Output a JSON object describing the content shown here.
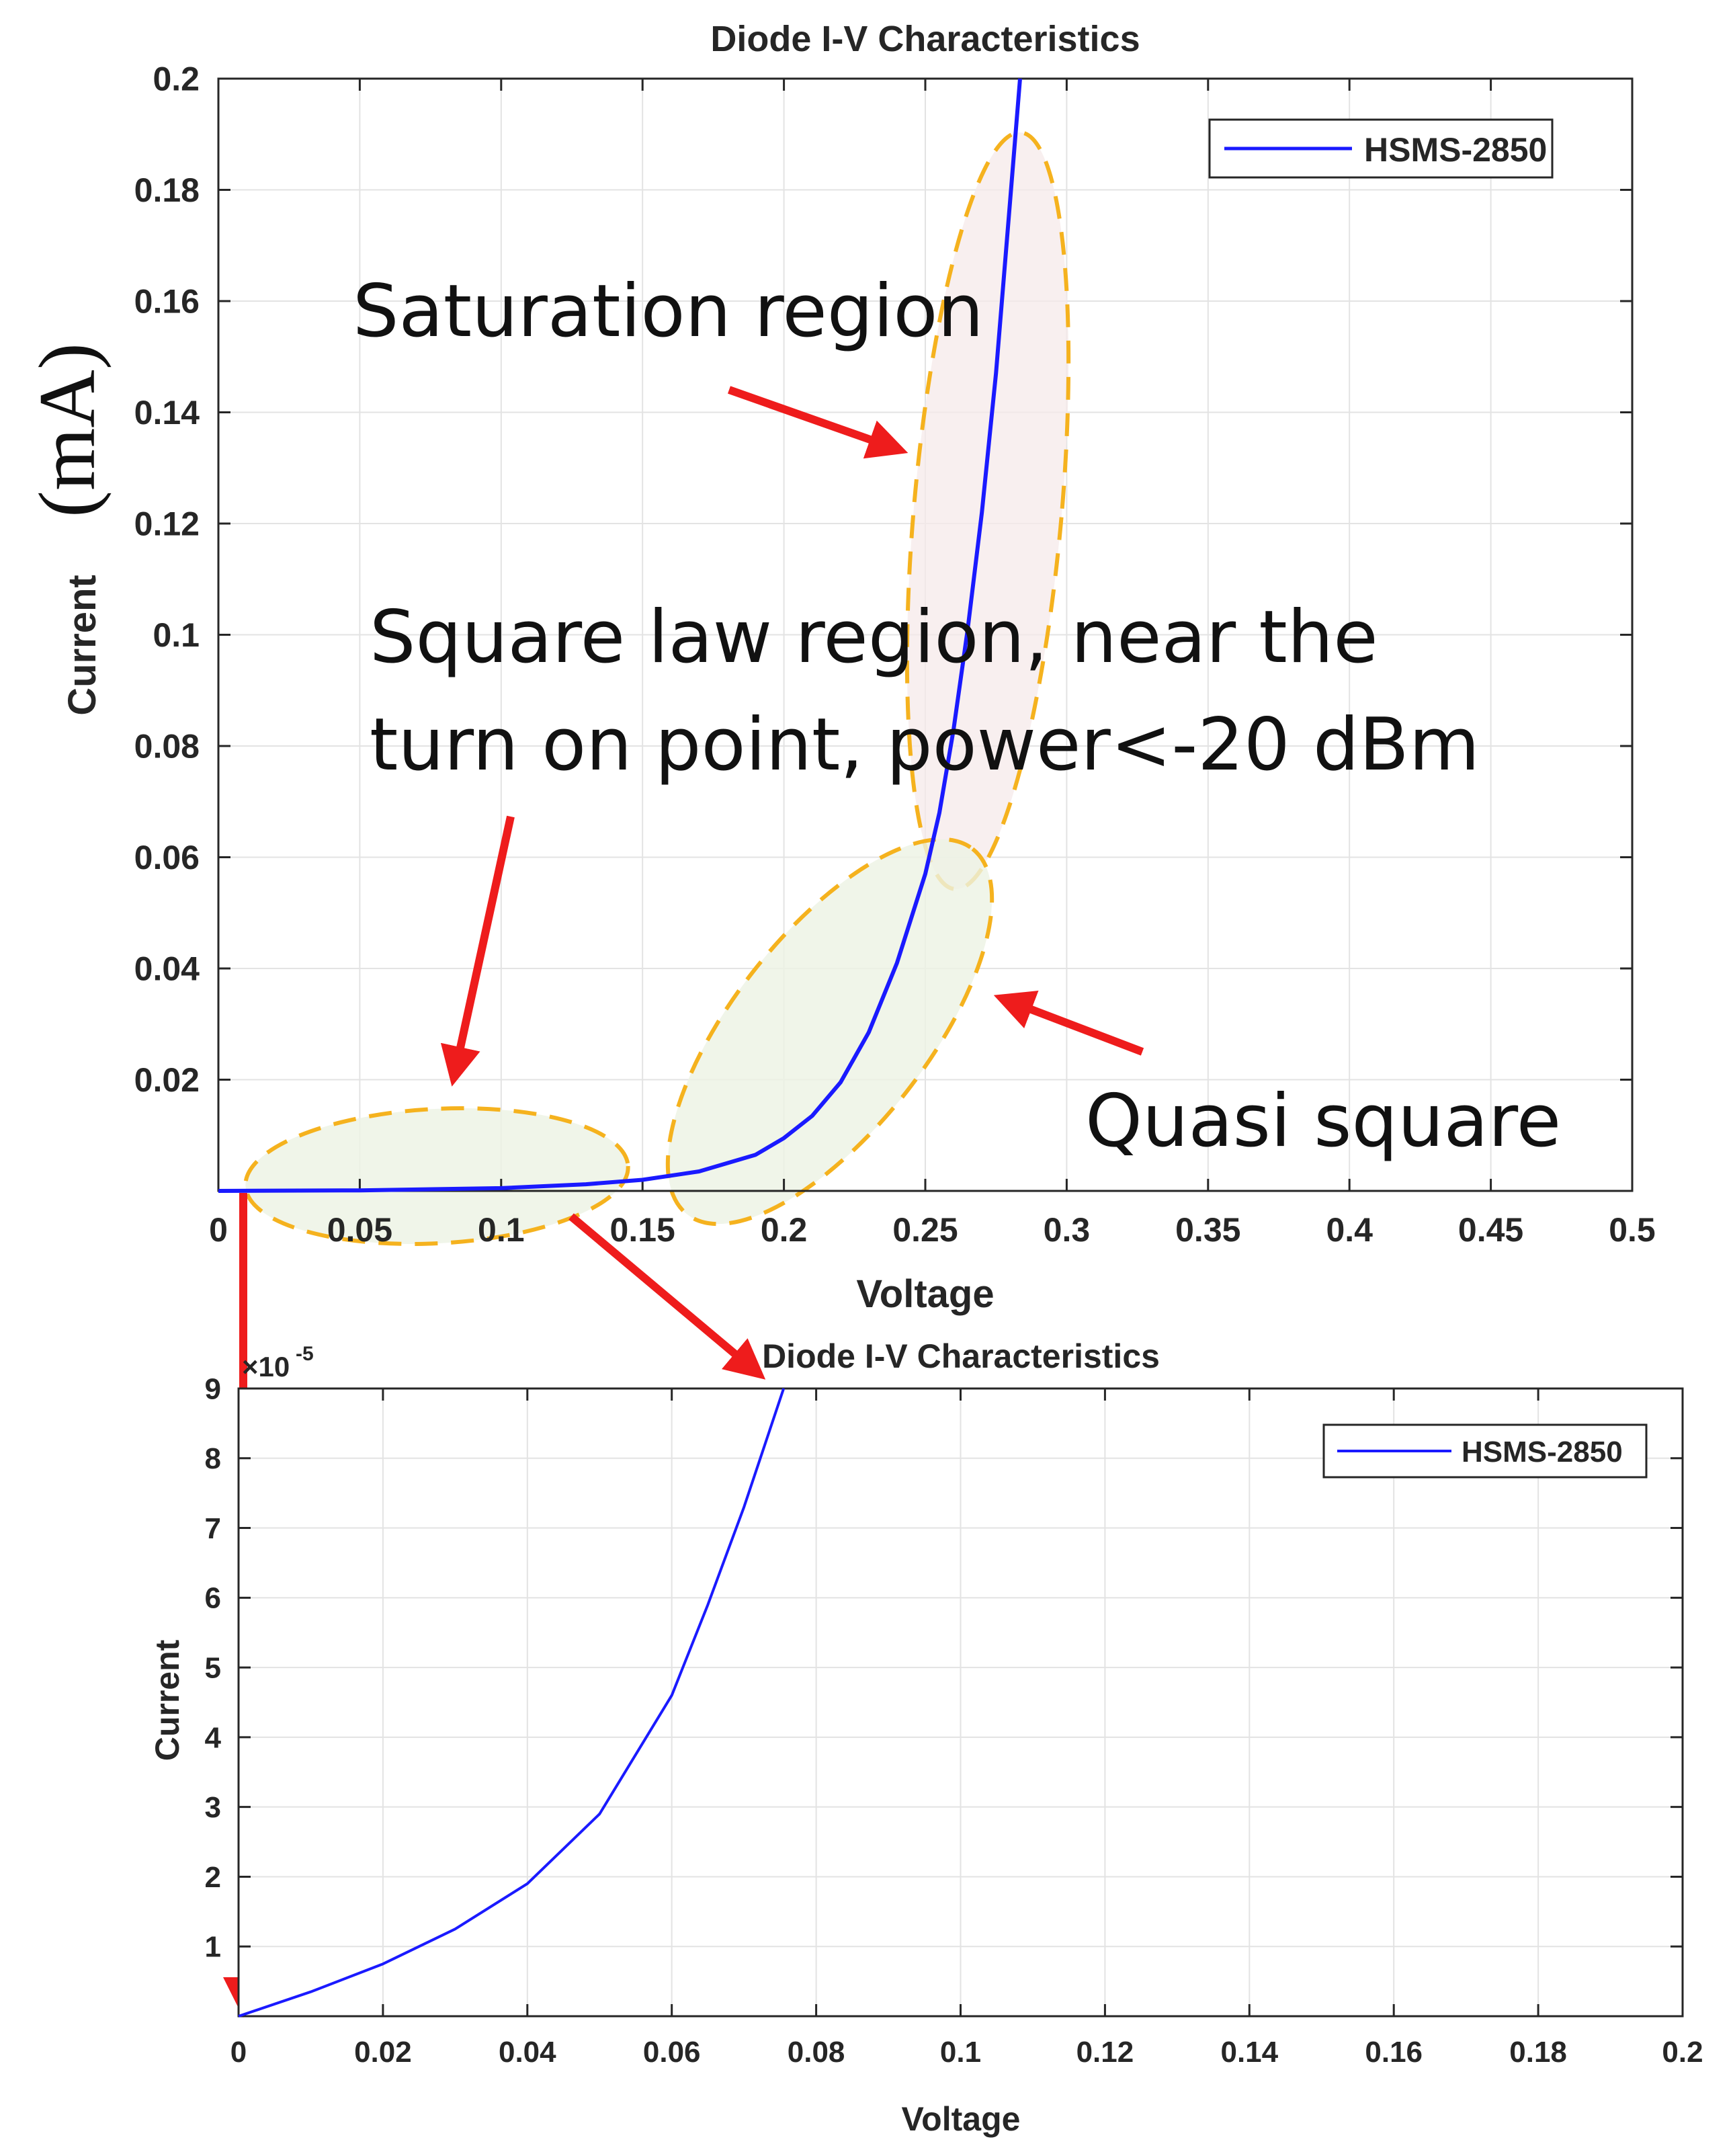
{
  "colors": {
    "series": "#1a1aff",
    "arrow": "#ee1c1c",
    "ellipse_stroke": "#f5b21e",
    "ellipse_fill_saturation": "#f6e9ea",
    "ellipse_fill_green": "#ecf2e4",
    "grid": "#e3e3e3"
  },
  "chart_data": [
    {
      "type": "line",
      "title": "Diode I-V Characteristics",
      "xlabel": "Voltage",
      "ylabel_main": "Current",
      "ylabel_unit": "(mA)",
      "xlim": [
        0,
        0.5
      ],
      "ylim": [
        0,
        0.2
      ],
      "xticks": [
        0,
        0.05,
        0.1,
        0.15,
        0.2,
        0.25,
        0.3,
        0.35,
        0.4,
        0.45,
        0.5
      ],
      "xtick_labels": [
        "0",
        "0.05",
        "0.1",
        "0.15",
        "0.2",
        "0.25",
        "0.3",
        "0.35",
        "0.4",
        "0.45",
        "0.5"
      ],
      "yticks": [
        0.02,
        0.04,
        0.06,
        0.08,
        0.1,
        0.12,
        0.14,
        0.16,
        0.18,
        0.2
      ],
      "ytick_labels": [
        "0.02",
        "0.04",
        "0.06",
        "0.08",
        "0.1",
        "0.12",
        "0.14",
        "0.16",
        "0.18",
        "0.2"
      ],
      "grid": true,
      "legend_position": "top-right",
      "series": [
        {
          "name": "HSMS-2850",
          "x": [
            0,
            0.05,
            0.1,
            0.13,
            0.15,
            0.17,
            0.19,
            0.2,
            0.21,
            0.22,
            0.23,
            0.24,
            0.25,
            0.255,
            0.26,
            0.265,
            0.27,
            0.275,
            0.28,
            0.2835
          ],
          "y": [
            0,
            0.0001,
            0.0005,
            0.0012,
            0.002,
            0.0035,
            0.0065,
            0.0095,
            0.0135,
            0.0195,
            0.0285,
            0.041,
            0.057,
            0.068,
            0.083,
            0.101,
            0.122,
            0.147,
            0.178,
            0.2
          ]
        }
      ],
      "annotations": [
        "Saturation region",
        "Square law region, near the",
        "turn on point, power<-20 dBm",
        "Quasi square"
      ]
    },
    {
      "type": "line",
      "title": "Diode I-V Characteristics",
      "xlabel": "Voltage",
      "ylabel": "Current",
      "exponent_label": "×10",
      "exponent_power": "-5",
      "xlim": [
        0,
        0.2
      ],
      "ylim": [
        0,
        9
      ],
      "xticks": [
        0,
        0.02,
        0.04,
        0.06,
        0.08,
        0.1,
        0.12,
        0.14,
        0.16,
        0.18,
        0.2
      ],
      "xtick_labels": [
        "0",
        "0.02",
        "0.04",
        "0.06",
        "0.08",
        "0.1",
        "0.12",
        "0.14",
        "0.16",
        "0.18",
        "0.2"
      ],
      "yticks": [
        1,
        2,
        3,
        4,
        5,
        6,
        7,
        8,
        9
      ],
      "ytick_labels": [
        "1",
        "2",
        "3",
        "4",
        "5",
        "6",
        "7",
        "8",
        "9"
      ],
      "grid": true,
      "legend_position": "top-right",
      "series": [
        {
          "name": "HSMS-2850",
          "x": [
            0,
            0.01,
            0.02,
            0.03,
            0.04,
            0.05,
            0.06,
            0.065,
            0.07,
            0.0755
          ],
          "y": [
            0,
            0.35,
            0.75,
            1.25,
            1.9,
            2.9,
            4.6,
            5.9,
            7.3,
            9.0
          ]
        }
      ]
    }
  ]
}
